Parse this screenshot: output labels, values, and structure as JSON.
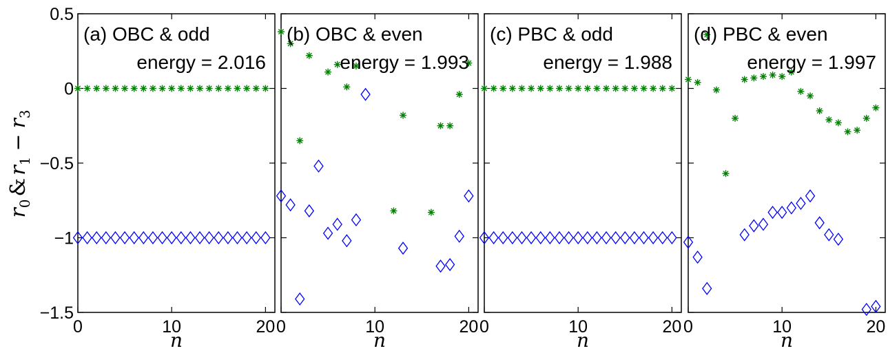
{
  "chart_data": {
    "type": "scatter",
    "ylabel": "r0 & r1 − r3",
    "ylabel_parts": {
      "r": "r",
      "sub0": "0",
      "amp": "&",
      "sub1": "1",
      "minus": "−",
      "sub3": "3"
    },
    "xlabel": "n",
    "xlim": [
      0,
      21
    ],
    "ylim": [
      -1.5,
      0.5
    ],
    "x_ticks": [
      0,
      10,
      20
    ],
    "y_ticks": [
      0.5,
      0,
      -0.5,
      -1,
      -1.5
    ],
    "y_tick_labels": [
      "0.5",
      "0",
      "−0.5",
      "−1",
      "−1.5"
    ],
    "x_tick_labels": [
      "0",
      "10",
      "20"
    ],
    "colors": {
      "r0": "#0000ff",
      "r1_r3": "#008000"
    },
    "panels": [
      {
        "label": "(a) OBC & odd",
        "energy": "energy = 2.016",
        "series": [
          {
            "marker": "diamond",
            "x": [
              0,
              1,
              2,
              3,
              4,
              5,
              6,
              7,
              8,
              9,
              10,
              11,
              12,
              13,
              14,
              15,
              16,
              17,
              18,
              19,
              20
            ],
            "y": [
              -1,
              -1,
              -1,
              -1,
              -1,
              -1,
              -1,
              -1,
              -1,
              -1,
              -1,
              -1,
              -1,
              -1,
              -1,
              -1,
              -1,
              -1,
              -1,
              -1,
              -1
            ]
          },
          {
            "marker": "asterisk",
            "x": [
              0,
              1,
              2,
              3,
              4,
              5,
              6,
              7,
              8,
              9,
              10,
              11,
              12,
              13,
              14,
              15,
              16,
              17,
              18,
              19,
              20
            ],
            "y": [
              0,
              0,
              0,
              0,
              0,
              0,
              0,
              0,
              0,
              0,
              0,
              0,
              0,
              0,
              0,
              0,
              0,
              0,
              0,
              0,
              0
            ]
          }
        ]
      },
      {
        "label": "(b) OBC & even",
        "energy": "energy = 1.993",
        "series": [
          {
            "marker": "diamond",
            "x": [
              0,
              1,
              2,
              3,
              4,
              5,
              6,
              7,
              8,
              9,
              13,
              17,
              18,
              19,
              20
            ],
            "y": [
              -0.72,
              -0.78,
              -1.41,
              -0.82,
              -0.52,
              -0.97,
              -0.91,
              -1.02,
              -0.88,
              -0.04,
              -1.07,
              -1.19,
              -1.18,
              -0.99,
              -0.72
            ]
          },
          {
            "marker": "asterisk",
            "x": [
              0,
              1,
              2,
              3,
              5,
              6,
              7,
              8,
              12,
              13,
              16,
              17,
              18,
              19,
              20
            ],
            "y": [
              0.38,
              0.3,
              -0.35,
              0.22,
              0.11,
              0.16,
              0.01,
              0.15,
              -0.82,
              -0.18,
              -0.83,
              -0.25,
              -0.25,
              -0.04,
              0.17
            ]
          }
        ]
      },
      {
        "label": "(c) PBC & odd",
        "energy": "energy = 1.988",
        "series": [
          {
            "marker": "diamond",
            "x": [
              0,
              1,
              2,
              3,
              4,
              5,
              6,
              7,
              8,
              9,
              10,
              11,
              12,
              13,
              14,
              15,
              16,
              17,
              18,
              19,
              20
            ],
            "y": [
              -1,
              -1,
              -1,
              -1,
              -1,
              -1,
              -1,
              -1,
              -1,
              -1,
              -1,
              -1,
              -1,
              -1,
              -1,
              -1,
              -1,
              -1,
              -1,
              -1,
              -1
            ]
          },
          {
            "marker": "asterisk",
            "x": [
              0,
              1,
              2,
              3,
              4,
              5,
              6,
              7,
              8,
              9,
              10,
              11,
              12,
              13,
              14,
              15,
              16,
              17,
              18,
              19,
              20
            ],
            "y": [
              0,
              0,
              0,
              0,
              0,
              0,
              0,
              0,
              0,
              0,
              0,
              0,
              0,
              0,
              0,
              0,
              0,
              0,
              0,
              0,
              0
            ]
          }
        ]
      },
      {
        "label": "(d) PBC & even",
        "energy": "energy = 1.997",
        "series": [
          {
            "marker": "diamond",
            "x": [
              0,
              1,
              2,
              6,
              7,
              8,
              9,
              10,
              11,
              12,
              13,
              14,
              15,
              16,
              19,
              20
            ],
            "y": [
              -1.03,
              -1.13,
              -1.34,
              -0.98,
              -0.92,
              -0.91,
              -0.83,
              -0.83,
              -0.8,
              -0.77,
              -0.72,
              -0.9,
              -0.98,
              -1.01,
              -1.48,
              -1.46
            ]
          },
          {
            "marker": "asterisk",
            "x": [
              0,
              1,
              2,
              3,
              4,
              5,
              6,
              7,
              8,
              9,
              10,
              11,
              12,
              13,
              14,
              15,
              16,
              17,
              18,
              19,
              20
            ],
            "y": [
              0.06,
              0.04,
              0.36,
              -0.01,
              -0.57,
              -0.2,
              0.06,
              0.07,
              0.08,
              0.09,
              0.08,
              0.11,
              -0.02,
              -0.05,
              -0.15,
              -0.21,
              -0.23,
              -0.29,
              -0.28,
              -0.2,
              -0.13
            ]
          }
        ]
      }
    ]
  }
}
